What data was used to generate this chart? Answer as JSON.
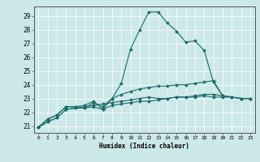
{
  "title": "",
  "xlabel": "Humidex (Indice chaleur)",
  "ylabel": "",
  "background_color": "#cce8e8",
  "grid_color": "#ffffff",
  "line_color": "#1a6b6b",
  "xlim": [
    -0.5,
    23.5
  ],
  "ylim": [
    20.5,
    29.7
  ],
  "xticks": [
    0,
    1,
    2,
    3,
    4,
    5,
    6,
    7,
    8,
    9,
    10,
    11,
    12,
    13,
    14,
    15,
    16,
    17,
    18,
    19,
    20,
    21,
    22,
    23
  ],
  "yticks": [
    21,
    22,
    23,
    24,
    25,
    26,
    27,
    28,
    29
  ],
  "series": [
    [
      20.9,
      21.5,
      21.8,
      22.4,
      22.4,
      22.5,
      22.8,
      22.2,
      23.0,
      24.1,
      26.6,
      28.0,
      29.3,
      29.3,
      28.5,
      27.9,
      27.1,
      27.2,
      26.5,
      24.2,
      23.2,
      23.1,
      23.0,
      23.0
    ],
    [
      20.9,
      21.5,
      21.8,
      22.4,
      22.4,
      22.3,
      22.7,
      22.4,
      23.0,
      23.3,
      23.5,
      23.7,
      23.8,
      23.9,
      23.9,
      24.0,
      24.0,
      24.1,
      24.2,
      24.3,
      23.2,
      23.1,
      23.0,
      23.0
    ],
    [
      20.9,
      21.3,
      21.6,
      22.2,
      22.3,
      22.3,
      22.4,
      22.2,
      22.5,
      22.6,
      22.7,
      22.8,
      22.8,
      22.9,
      23.0,
      23.1,
      23.1,
      23.2,
      23.3,
      23.3,
      23.2,
      23.1,
      23.0,
      23.0
    ],
    [
      20.9,
      21.3,
      21.6,
      22.2,
      22.3,
      22.4,
      22.5,
      22.6,
      22.7,
      22.8,
      22.9,
      23.0,
      23.1,
      23.0,
      23.0,
      23.1,
      23.1,
      23.1,
      23.2,
      23.1,
      23.1,
      23.1,
      23.0,
      23.0
    ]
  ]
}
